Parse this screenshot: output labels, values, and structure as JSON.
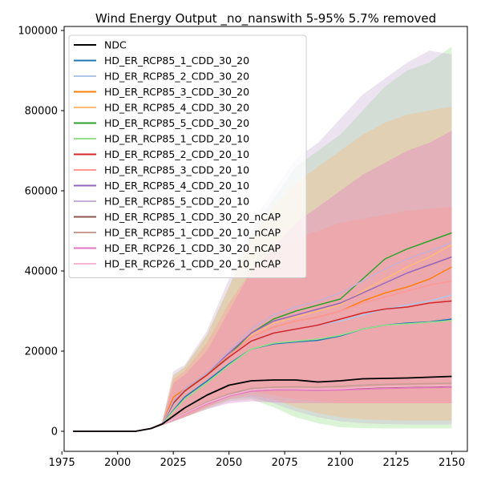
{
  "chart_data": {
    "type": "area",
    "title": "Wind Energy Output _no_nanswith 5-95% 5.7% removed",
    "xlabel": "",
    "ylabel": "",
    "xlim": [
      1976,
      2157
    ],
    "ylim": [
      -5000,
      101000
    ],
    "xticks": [
      1975,
      2000,
      2025,
      2050,
      2075,
      2100,
      2125,
      2150
    ],
    "yticks": [
      0,
      20000,
      40000,
      60000,
      80000,
      100000
    ],
    "grid": false,
    "legend_position": "upper-left",
    "band_description": "5-95% range",
    "series": [
      {
        "name": "NDC",
        "color": "#000000",
        "x": [
          1980,
          2008,
          2015,
          2020,
          2025,
          2030,
          2040,
          2050,
          2060,
          2070,
          2080,
          2090,
          2100,
          2110,
          2120,
          2130,
          2140,
          2150
        ],
        "y": [
          0,
          0,
          700,
          1800,
          3800,
          5800,
          9000,
          11500,
          12600,
          12800,
          12800,
          12300,
          12600,
          13100,
          13200,
          13300,
          13500,
          13700
        ]
      },
      {
        "name": "HD_ER_RCP85_1_CDD_30_20",
        "color": "#1f77b4",
        "x": [
          1980,
          2008,
          2015,
          2020,
          2025,
          2030,
          2040,
          2050,
          2060,
          2070,
          2080,
          2090,
          2100,
          2110,
          2120,
          2130,
          2140,
          2150
        ],
        "y": [
          0,
          0,
          700,
          1800,
          5200,
          8500,
          12500,
          16800,
          20500,
          21800,
          22300,
          22700,
          23800,
          25500,
          26500,
          27000,
          27300,
          28000
        ]
      },
      {
        "name": "HD_ER_RCP85_2_CDD_30_20",
        "color": "#aec7e8",
        "x": [
          1980,
          2008,
          2015,
          2020,
          2025,
          2030,
          2040,
          2050,
          2060,
          2070,
          2080,
          2090,
          2100,
          2110,
          2120,
          2130,
          2140,
          2150
        ],
        "y": [
          0,
          0,
          700,
          1800,
          6500,
          10500,
          14500,
          18500,
          22500,
          24500,
          25500,
          26500,
          27500,
          29000,
          30500,
          31500,
          32500,
          34000
        ]
      },
      {
        "name": "HD_ER_RCP85_3_CDD_30_20",
        "color": "#ff7f0e",
        "x": [
          1980,
          2008,
          2015,
          2020,
          2025,
          2030,
          2040,
          2050,
          2060,
          2070,
          2080,
          2090,
          2100,
          2110,
          2120,
          2130,
          2140,
          2150
        ],
        "y": [
          0,
          0,
          700,
          1800,
          8500,
          10500,
          14000,
          19000,
          23500,
          26000,
          27500,
          28500,
          30000,
          32500,
          34500,
          36000,
          38000,
          41000
        ]
      },
      {
        "name": "HD_ER_RCP85_4_CDD_30_20",
        "color": "#ffbb78",
        "x": [
          1980,
          2008,
          2015,
          2020,
          2025,
          2030,
          2040,
          2050,
          2060,
          2070,
          2080,
          2090,
          2100,
          2110,
          2120,
          2130,
          2140,
          2150
        ],
        "y": [
          0,
          0,
          700,
          1800,
          7500,
          10500,
          14500,
          19500,
          24000,
          27000,
          28500,
          30000,
          31500,
          35000,
          38000,
          41000,
          43500,
          46500
        ]
      },
      {
        "name": "HD_ER_RCP85_5_CDD_30_20",
        "color": "#2ca02c",
        "x": [
          1980,
          2008,
          2015,
          2020,
          2025,
          2030,
          2040,
          2050,
          2060,
          2070,
          2080,
          2090,
          2100,
          2110,
          2120,
          2130,
          2140,
          2150
        ],
        "y": [
          0,
          0,
          700,
          1800,
          7000,
          10000,
          14000,
          19000,
          24500,
          28000,
          30000,
          31500,
          33000,
          38000,
          43000,
          45500,
          47500,
          49500
        ]
      },
      {
        "name": "HD_ER_RCP85_1_CDD_20_10",
        "color": "#98df8a",
        "x": [
          1980,
          2008,
          2015,
          2020,
          2025,
          2030,
          2040,
          2050,
          2060,
          2070,
          2080,
          2090,
          2100,
          2110,
          2120,
          2130,
          2140,
          2150
        ],
        "y": [
          0,
          0,
          700,
          1800,
          5000,
          8000,
          12000,
          16500,
          20500,
          22000,
          22500,
          23000,
          24000,
          25500,
          26500,
          26800,
          27200,
          27600
        ]
      },
      {
        "name": "HD_ER_RCP85_2_CDD_20_10",
        "color": "#d62728",
        "x": [
          1980,
          2008,
          2015,
          2020,
          2025,
          2030,
          2040,
          2050,
          2060,
          2070,
          2080,
          2090,
          2100,
          2110,
          2120,
          2130,
          2140,
          2150
        ],
        "y": [
          0,
          0,
          700,
          1800,
          7000,
          10000,
          14000,
          18500,
          22500,
          24500,
          25500,
          26500,
          28000,
          29500,
          30500,
          31000,
          32000,
          32500
        ]
      },
      {
        "name": "HD_ER_RCP85_3_CDD_20_10",
        "color": "#ff9896",
        "x": [
          1980,
          2008,
          2015,
          2020,
          2025,
          2030,
          2040,
          2050,
          2060,
          2070,
          2080,
          2090,
          2100,
          2110,
          2120,
          2130,
          2140,
          2150
        ],
        "y": [
          0,
          0,
          700,
          1800,
          7500,
          10500,
          14500,
          19000,
          23500,
          26000,
          27500,
          28500,
          30000,
          32000,
          33500,
          35000,
          36500,
          37500
        ]
      },
      {
        "name": "HD_ER_RCP85_4_CDD_20_10",
        "color": "#9467bd",
        "x": [
          1980,
          2008,
          2015,
          2020,
          2025,
          2030,
          2040,
          2050,
          2060,
          2070,
          2080,
          2090,
          2100,
          2110,
          2120,
          2130,
          2140,
          2150
        ],
        "y": [
          0,
          0,
          700,
          1800,
          7500,
          10500,
          14500,
          19500,
          24500,
          27500,
          29000,
          30500,
          32000,
          34500,
          37000,
          39500,
          41500,
          43500
        ]
      },
      {
        "name": "HD_ER_RCP85_5_CDD_20_10",
        "color": "#c5b0d5",
        "x": [
          1980,
          2008,
          2015,
          2020,
          2025,
          2030,
          2040,
          2050,
          2060,
          2070,
          2080,
          2090,
          2100,
          2110,
          2120,
          2130,
          2140,
          2150
        ],
        "y": [
          0,
          0,
          700,
          1800,
          7500,
          10500,
          14500,
          20000,
          25500,
          29000,
          31000,
          32500,
          34500,
          37500,
          40500,
          43000,
          45000,
          47000
        ]
      },
      {
        "name": "HD_ER_RCP85_1_CDD_30_20_nCAP",
        "color": "#8c564b",
        "x": [
          1980,
          2008,
          2015,
          2020,
          2025,
          2030,
          2040,
          2050,
          2060,
          2070,
          2080,
          2090,
          2100,
          2110,
          2120,
          2130,
          2140,
          2150
        ],
        "y": [
          0,
          0,
          700,
          1800,
          3000,
          4500,
          7000,
          9000,
          10300,
          10500,
          10500,
          10400,
          10500,
          10800,
          11000,
          11100,
          11200,
          11300
        ]
      },
      {
        "name": "HD_ER_RCP85_1_CDD_20_10_nCAP",
        "color": "#c49c94",
        "x": [
          1980,
          2008,
          2015,
          2020,
          2025,
          2030,
          2040,
          2050,
          2060,
          2070,
          2080,
          2090,
          2100,
          2110,
          2120,
          2130,
          2140,
          2150
        ],
        "y": [
          0,
          0,
          700,
          1800,
          3100,
          4600,
          7200,
          9300,
          10700,
          11000,
          11100,
          11000,
          11200,
          11500,
          11700,
          11800,
          11900,
          12000
        ]
      },
      {
        "name": "HD_ER_RCP26_1_CDD_30_20_nCAP",
        "color": "#e377c2",
        "x": [
          1980,
          2008,
          2015,
          2020,
          2025,
          2030,
          2040,
          2050,
          2060,
          2070,
          2080,
          2090,
          2100,
          2110,
          2120,
          2130,
          2140,
          2150
        ],
        "y": [
          0,
          0,
          700,
          1800,
          2900,
          4300,
          6800,
          8800,
          10000,
          10300,
          10300,
          10200,
          10300,
          10500,
          10700,
          10800,
          10900,
          11000
        ]
      },
      {
        "name": "HD_ER_RCP26_1_CDD_20_10_nCAP",
        "color": "#f7b6d2",
        "x": [
          1980,
          2008,
          2015,
          2020,
          2025,
          2030,
          2040,
          2050,
          2060,
          2070,
          2080,
          2090,
          2100,
          2110,
          2120,
          2130,
          2140,
          2150
        ],
        "y": [
          0,
          0,
          700,
          1800,
          3000,
          4400,
          7000,
          9000,
          10300,
          10600,
          10600,
          10500,
          10600,
          10900,
          11100,
          11200,
          11300,
          11400
        ]
      }
    ],
    "bands": [
      {
        "color": "#98df8a",
        "x": [
          1980,
          2008,
          2015,
          2020,
          2025,
          2030,
          2040,
          2050,
          2060,
          2070,
          2080,
          2090,
          2100,
          2110,
          2120,
          2130,
          2140,
          2150
        ],
        "low": [
          0,
          0,
          600,
          1500,
          2500,
          3500,
          5500,
          7500,
          8000,
          6000,
          3500,
          2000,
          1000,
          800,
          700,
          700,
          700,
          700
        ],
        "high": [
          0,
          0,
          800,
          2200,
          14000,
          16000,
          24000,
          36000,
          50000,
          58000,
          66000,
          70000,
          74000,
          80000,
          86000,
          90000,
          92000,
          96000
        ]
      },
      {
        "color": "#c5b0d5",
        "x": [
          1980,
          2008,
          2015,
          2020,
          2025,
          2030,
          2040,
          2050,
          2060,
          2070,
          2080,
          2090,
          2100,
          2110,
          2120,
          2130,
          2140,
          2150
        ],
        "low": [
          0,
          0,
          600,
          1500,
          2500,
          3500,
          6000,
          8000,
          8500,
          7000,
          5000,
          3500,
          2500,
          2000,
          1800,
          1700,
          1700,
          1700
        ],
        "high": [
          0,
          0,
          800,
          2200,
          15000,
          16500,
          25000,
          38000,
          52000,
          60000,
          68000,
          72000,
          78000,
          84000,
          88000,
          92000,
          95000,
          94000
        ]
      },
      {
        "color": "#ffbb78",
        "x": [
          1980,
          2008,
          2015,
          2020,
          2025,
          2030,
          2040,
          2050,
          2060,
          2070,
          2080,
          2090,
          2100,
          2110,
          2120,
          2130,
          2140,
          2150
        ],
        "low": [
          0,
          0,
          600,
          1500,
          2500,
          3500,
          6000,
          8000,
          9000,
          8000,
          6000,
          4500,
          3500,
          3000,
          2800,
          2700,
          2700,
          2700
        ],
        "high": [
          0,
          0,
          800,
          2200,
          14000,
          16000,
          24000,
          36000,
          48000,
          56000,
          62000,
          66000,
          70000,
          74000,
          77000,
          79000,
          80000,
          81000
        ]
      },
      {
        "color": "#e377c2",
        "x": [
          1980,
          2008,
          2015,
          2020,
          2025,
          2030,
          2040,
          2050,
          2060,
          2070,
          2080,
          2090,
          2100,
          2110,
          2120,
          2130,
          2140,
          2150
        ],
        "low": [
          0,
          0,
          600,
          1500,
          2500,
          3500,
          5500,
          7000,
          7500,
          7200,
          7000,
          7000,
          7000,
          7000,
          7000,
          7000,
          7000,
          7000
        ],
        "high": [
          0,
          0,
          800,
          2200,
          12000,
          14000,
          20000,
          30000,
          40000,
          46000,
          52000,
          56000,
          60000,
          64000,
          67000,
          70000,
          72000,
          75000
        ]
      },
      {
        "color": "#ff9896",
        "x": [
          1980,
          2008,
          2015,
          2020,
          2025,
          2030,
          2040,
          2050,
          2060,
          2070,
          2080,
          2090,
          2100,
          2110,
          2120,
          2130,
          2140,
          2150
        ],
        "low": [
          0,
          0,
          600,
          1500,
          2500,
          3500,
          6000,
          9000,
          10000,
          9000,
          8000,
          7500,
          7000,
          7000,
          7000,
          7000,
          7000,
          7000
        ],
        "high": [
          0,
          0,
          800,
          2200,
          13000,
          15000,
          22000,
          32000,
          40000,
          45000,
          48000,
          50000,
          52000,
          53000,
          54000,
          55000,
          55500,
          56000
        ]
      }
    ]
  }
}
